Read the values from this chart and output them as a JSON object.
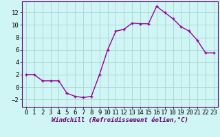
{
  "x": [
    0,
    1,
    2,
    3,
    4,
    5,
    6,
    7,
    8,
    9,
    10,
    11,
    12,
    13,
    14,
    15,
    16,
    17,
    18,
    19,
    20,
    21,
    22,
    23
  ],
  "y": [
    2,
    2,
    1,
    1,
    1,
    -1,
    -1.5,
    -1.7,
    -1.5,
    2,
    6,
    9,
    9.3,
    10.3,
    10.2,
    10.2,
    13.0,
    12.0,
    11.0,
    9.7,
    9.0,
    7.5,
    5.5,
    5.5
  ],
  "line_color": "#990099",
  "marker": "+",
  "marker_size": 3.5,
  "marker_lw": 1.0,
  "line_width": 1.0,
  "bg_color": "#cff5f5",
  "grid_color": "#b0d8d8",
  "xlabel": "Windchill (Refroidissement éolien,°C)",
  "xlabel_fontsize": 6.5,
  "tick_fontsize": 6.5,
  "ylim": [
    -3.2,
    13.8
  ],
  "xlim": [
    -0.5,
    23.5
  ],
  "yticks": [
    -2,
    0,
    2,
    4,
    6,
    8,
    10,
    12
  ],
  "xticks": [
    0,
    1,
    2,
    3,
    4,
    5,
    6,
    7,
    8,
    9,
    10,
    11,
    12,
    13,
    14,
    15,
    16,
    17,
    18,
    19,
    20,
    21,
    22,
    23
  ]
}
